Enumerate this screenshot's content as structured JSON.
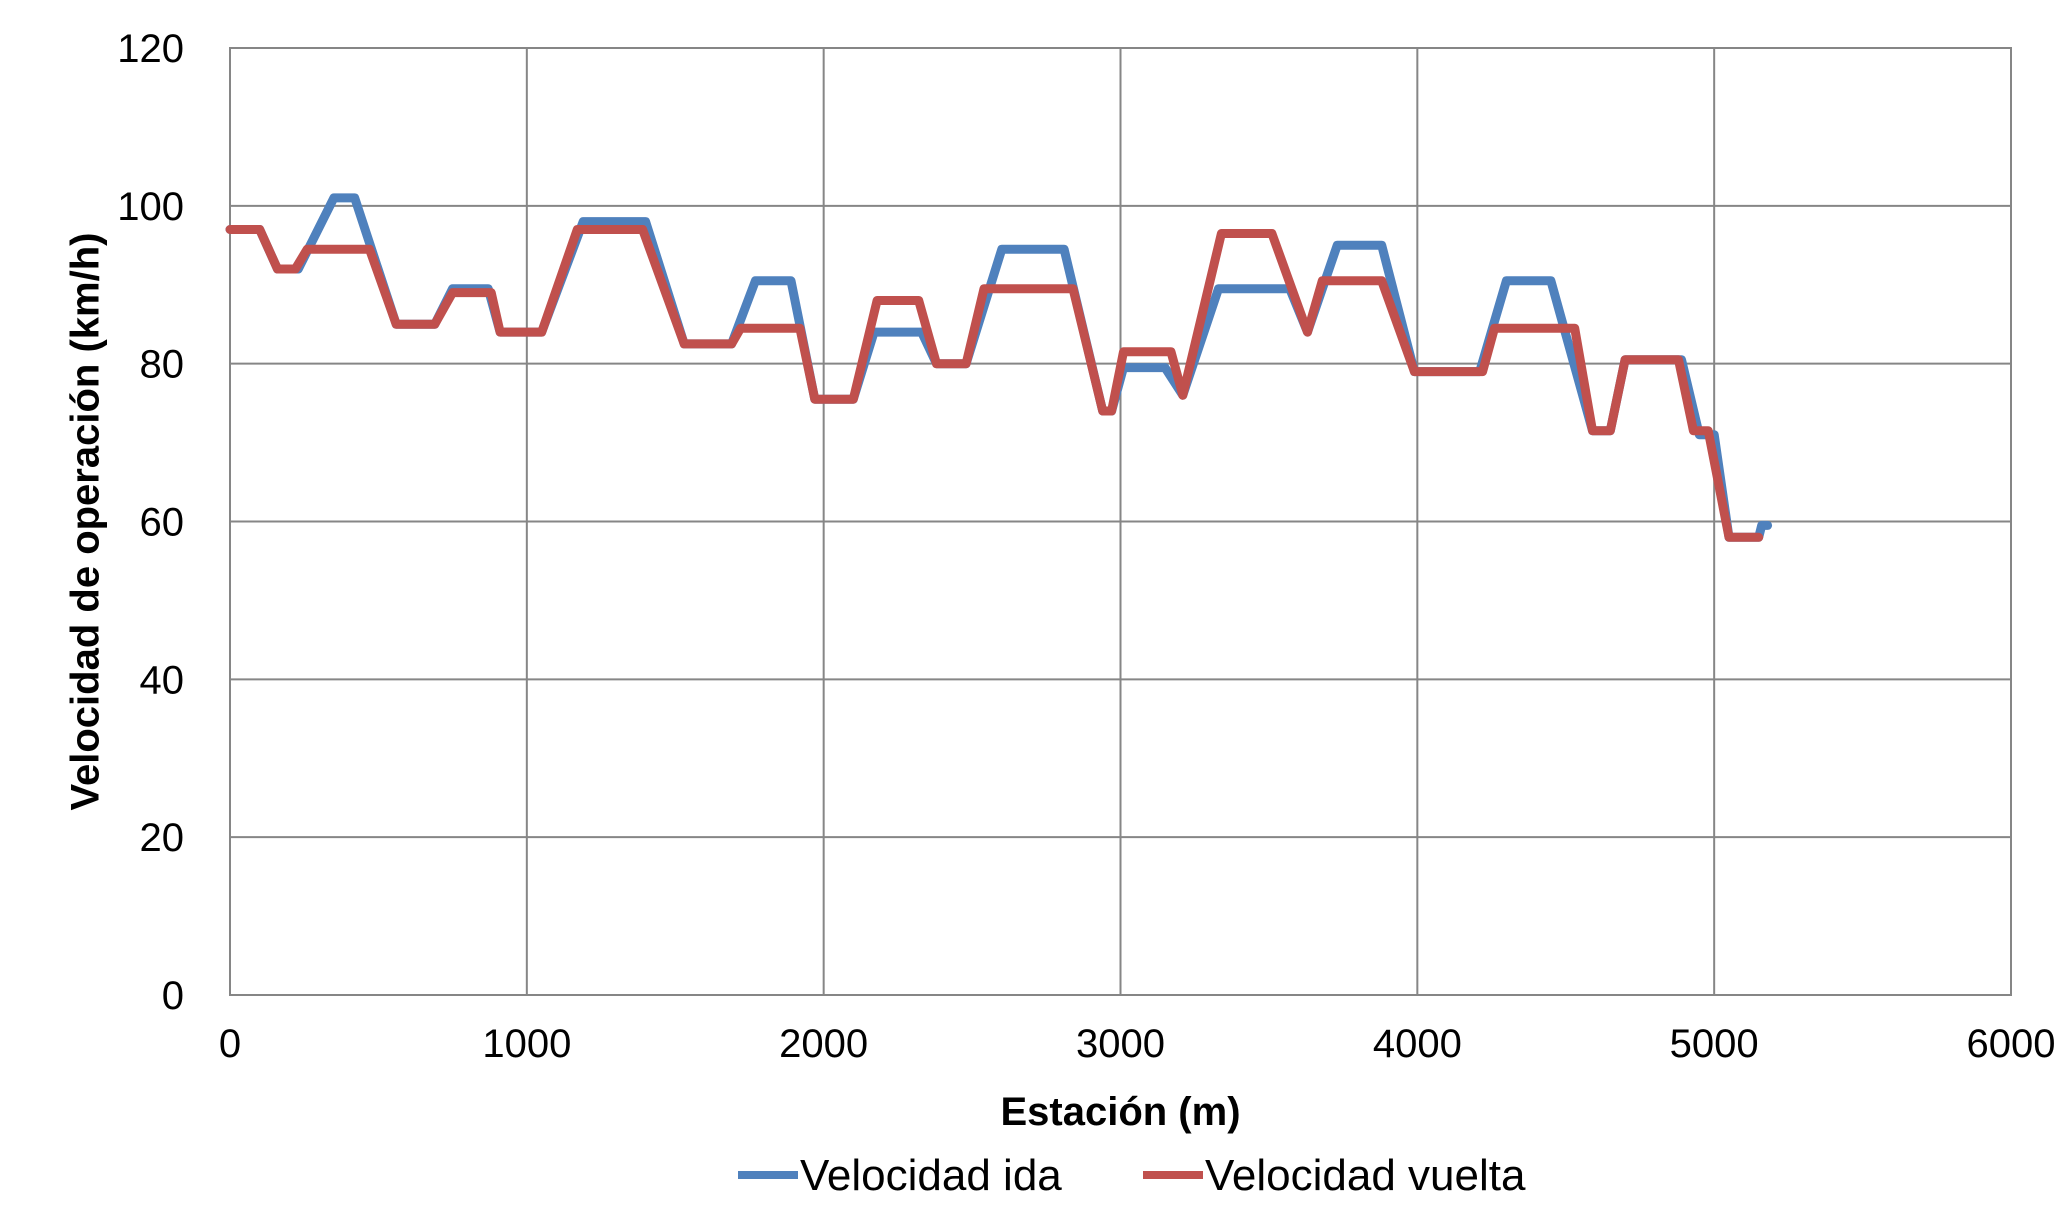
{
  "chart_data": {
    "type": "line",
    "title": "",
    "xlabel": "Estación (m)",
    "ylabel": "Velocidad de operación (km/h)",
    "xlim": [
      0,
      6000
    ],
    "ylim": [
      0,
      120
    ],
    "x_ticks": [
      "0",
      "1000",
      "2000",
      "3000",
      "4000",
      "5000",
      "6000"
    ],
    "y_ticks": [
      "0",
      "20",
      "40",
      "60",
      "80",
      "100",
      "120"
    ],
    "x_tick_values": [
      0,
      1000,
      2000,
      3000,
      4000,
      5000,
      6000
    ],
    "y_tick_values": [
      0,
      20,
      40,
      60,
      80,
      100,
      120
    ],
    "grid": true,
    "legend_position": "bottom",
    "series": [
      {
        "name": "Velocidad ida",
        "color": "#4F81BD",
        "points": [
          [
            0,
            97
          ],
          [
            100,
            97
          ],
          [
            160,
            92
          ],
          [
            230,
            92
          ],
          [
            350,
            101
          ],
          [
            420,
            101
          ],
          [
            560,
            85
          ],
          [
            690,
            85
          ],
          [
            750,
            89.5
          ],
          [
            870,
            89.5
          ],
          [
            910,
            84
          ],
          [
            1050,
            84
          ],
          [
            1190,
            98
          ],
          [
            1400,
            98
          ],
          [
            1530,
            82.5
          ],
          [
            1690,
            82.5
          ],
          [
            1770,
            90.5
          ],
          [
            1890,
            90.5
          ],
          [
            1970,
            75.5
          ],
          [
            2100,
            75.5
          ],
          [
            2170,
            84
          ],
          [
            2330,
            84
          ],
          [
            2380,
            80
          ],
          [
            2480,
            80
          ],
          [
            2600,
            94.5
          ],
          [
            2810,
            94.5
          ],
          [
            2940,
            74
          ],
          [
            2970,
            74
          ],
          [
            3010,
            79.5
          ],
          [
            3150,
            79.5
          ],
          [
            3210,
            76
          ],
          [
            3330,
            89.5
          ],
          [
            3570,
            89.5
          ],
          [
            3630,
            84
          ],
          [
            3730,
            95
          ],
          [
            3880,
            95
          ],
          [
            3990,
            79
          ],
          [
            4210,
            79
          ],
          [
            4300,
            90.5
          ],
          [
            4450,
            90.5
          ],
          [
            4590,
            71.5
          ],
          [
            4650,
            71.5
          ],
          [
            4700,
            80.5
          ],
          [
            4890,
            80.5
          ],
          [
            4950,
            71
          ],
          [
            5000,
            71
          ],
          [
            5050,
            58
          ],
          [
            5150,
            58
          ],
          [
            5160,
            59.5
          ],
          [
            5180,
            59.5
          ]
        ]
      },
      {
        "name": "Velocidad vuelta",
        "color": "#C0504D",
        "points": [
          [
            0,
            97
          ],
          [
            100,
            97
          ],
          [
            160,
            92
          ],
          [
            220,
            92
          ],
          [
            260,
            94.5
          ],
          [
            470,
            94.5
          ],
          [
            560,
            85
          ],
          [
            690,
            85
          ],
          [
            750,
            89
          ],
          [
            880,
            89
          ],
          [
            910,
            84
          ],
          [
            1050,
            84
          ],
          [
            1170,
            97
          ],
          [
            1390,
            97
          ],
          [
            1530,
            82.5
          ],
          [
            1690,
            82.5
          ],
          [
            1720,
            84.5
          ],
          [
            1920,
            84.5
          ],
          [
            1970,
            75.5
          ],
          [
            2100,
            75.5
          ],
          [
            2180,
            88
          ],
          [
            2320,
            88
          ],
          [
            2380,
            80
          ],
          [
            2480,
            80
          ],
          [
            2540,
            89.5
          ],
          [
            2840,
            89.5
          ],
          [
            2940,
            74
          ],
          [
            2970,
            74
          ],
          [
            3010,
            81.5
          ],
          [
            3170,
            81.5
          ],
          [
            3210,
            76
          ],
          [
            3340,
            96.5
          ],
          [
            3510,
            96.5
          ],
          [
            3630,
            84
          ],
          [
            3680,
            90.5
          ],
          [
            3880,
            90.5
          ],
          [
            3990,
            79
          ],
          [
            4220,
            79
          ],
          [
            4260,
            84.5
          ],
          [
            4530,
            84.5
          ],
          [
            4590,
            71.5
          ],
          [
            4650,
            71.5
          ],
          [
            4700,
            80.5
          ],
          [
            4880,
            80.5
          ],
          [
            4930,
            71.5
          ],
          [
            4980,
            71.5
          ],
          [
            5050,
            58
          ],
          [
            5150,
            58
          ]
        ]
      }
    ]
  }
}
